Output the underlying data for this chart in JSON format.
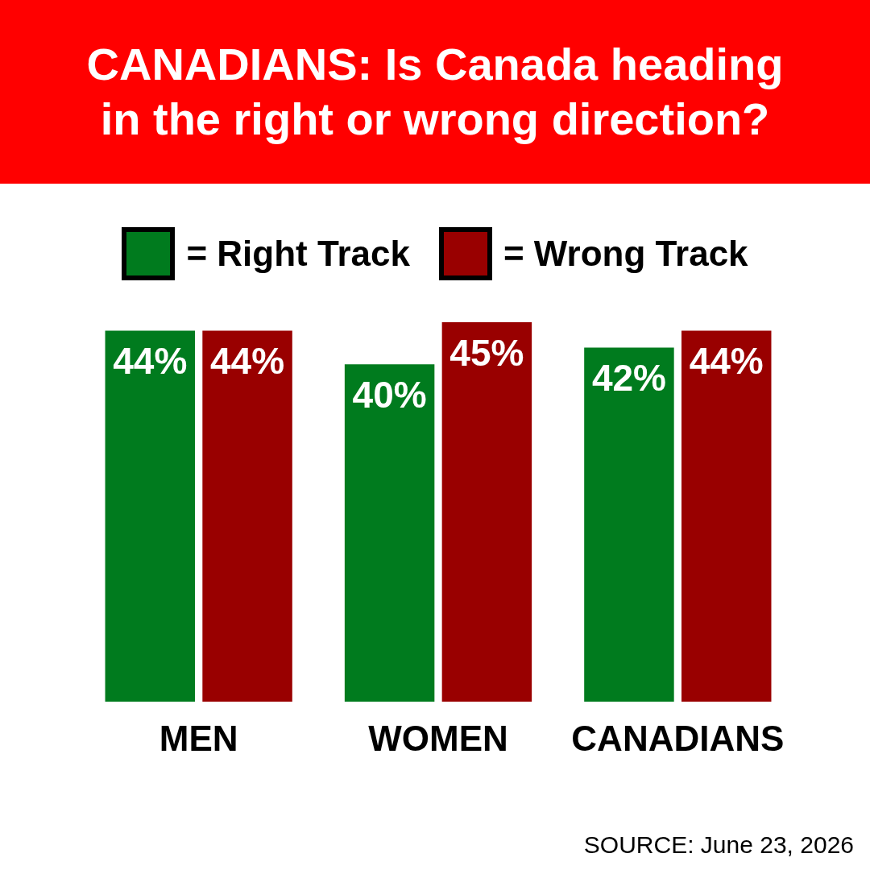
{
  "chart_data": {
    "type": "bar",
    "title": "CANADIANS: Is Canada heading in the right or wrong direction?",
    "categories": [
      "MEN",
      "WOMEN",
      "CANADIANS"
    ],
    "series": [
      {
        "name": "= Right Track",
        "color": "#007b1e",
        "values": [
          44,
          40,
          42
        ],
        "value_labels": [
          "44%",
          "40%",
          "42%"
        ]
      },
      {
        "name": "= Wrong Track",
        "color": "#990000",
        "values": [
          44,
          45,
          44
        ],
        "value_labels": [
          "44%",
          "45%",
          "44%"
        ]
      }
    ],
    "relative": false,
    "legend": "top",
    "grid": false,
    "annotations": [
      "SOURCE: June 23, 2026"
    ]
  }
}
